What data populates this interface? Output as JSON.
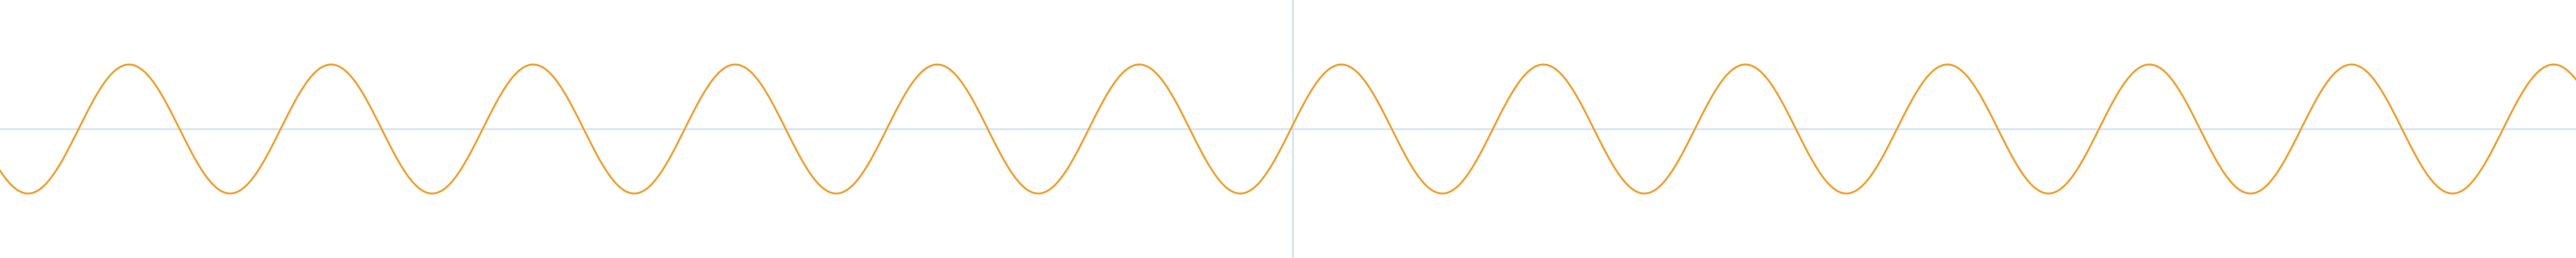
{
  "chart_data": {
    "type": "line",
    "title": "",
    "xlabel": "",
    "ylabel": "",
    "grid": false,
    "legend": "none",
    "function": "sine",
    "amplitude": 1,
    "period_count_visible": 12.75,
    "phase_at_left_edge_deg": -140,
    "xlim": [
      -6.4,
      6.35
    ],
    "ylim": [
      -2,
      2
    ],
    "axes_cross_at": [
      0,
      0
    ],
    "series": [
      {
        "color": "#f0a030",
        "sample_count": 1600
      }
    ]
  },
  "colors": {
    "background": "#ffffff",
    "axis": "#cfe3ee",
    "line": "#f0a030"
  }
}
